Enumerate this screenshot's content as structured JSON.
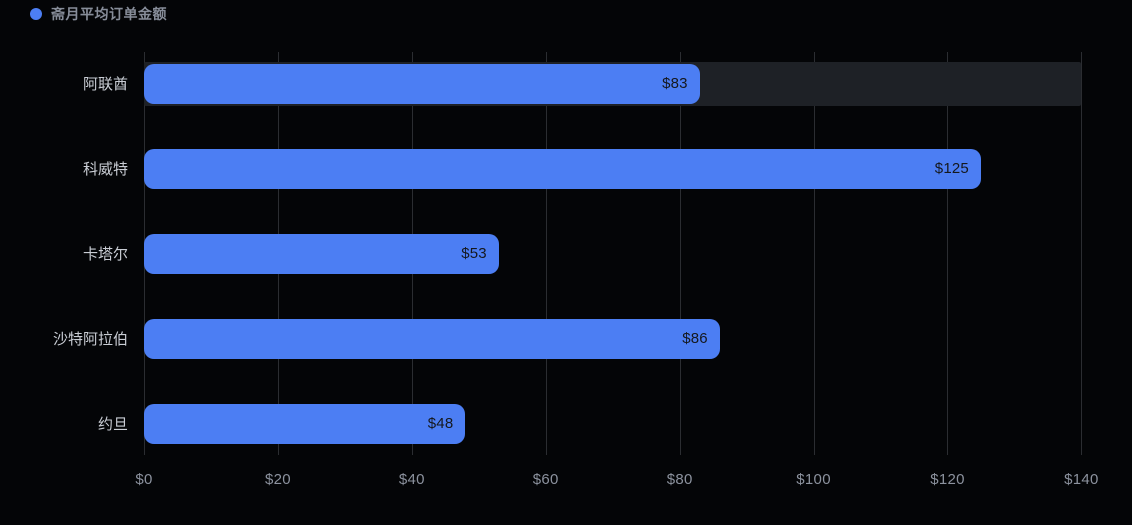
{
  "legend": {
    "label": "斋月平均订单金额"
  },
  "chart_data": {
    "type": "bar",
    "orientation": "horizontal",
    "title": "",
    "xlabel": "",
    "ylabel": "",
    "categories": [
      "阿联酋",
      "科威特",
      "卡塔尔",
      "沙特阿拉伯",
      "约旦"
    ],
    "series": [
      {
        "name": "斋月平均订单金额",
        "values": [
          83,
          125,
          53,
          86,
          48
        ]
      }
    ],
    "value_labels": [
      "$83",
      "$125",
      "$53",
      "$86",
      "$48"
    ],
    "x_ticks": [
      "$0",
      "$20",
      "$40",
      "$60",
      "$80",
      "$100",
      "$120",
      "$140"
    ],
    "x_tick_values": [
      0,
      20,
      40,
      60,
      80,
      100,
      120,
      140
    ],
    "xlim": [
      0,
      140
    ],
    "grid": true,
    "legend_position": "top-left",
    "highlighted_row_index": 0,
    "colors": {
      "bar": "#4c7ef3",
      "bar_track": "#1e2126",
      "gridline": "#2b2d31",
      "category_label": "#c9cdd4",
      "x_tick_label": "#8c929e",
      "value_label": "#15181d",
      "legend_text": "#878d99",
      "background": "#040507"
    }
  }
}
